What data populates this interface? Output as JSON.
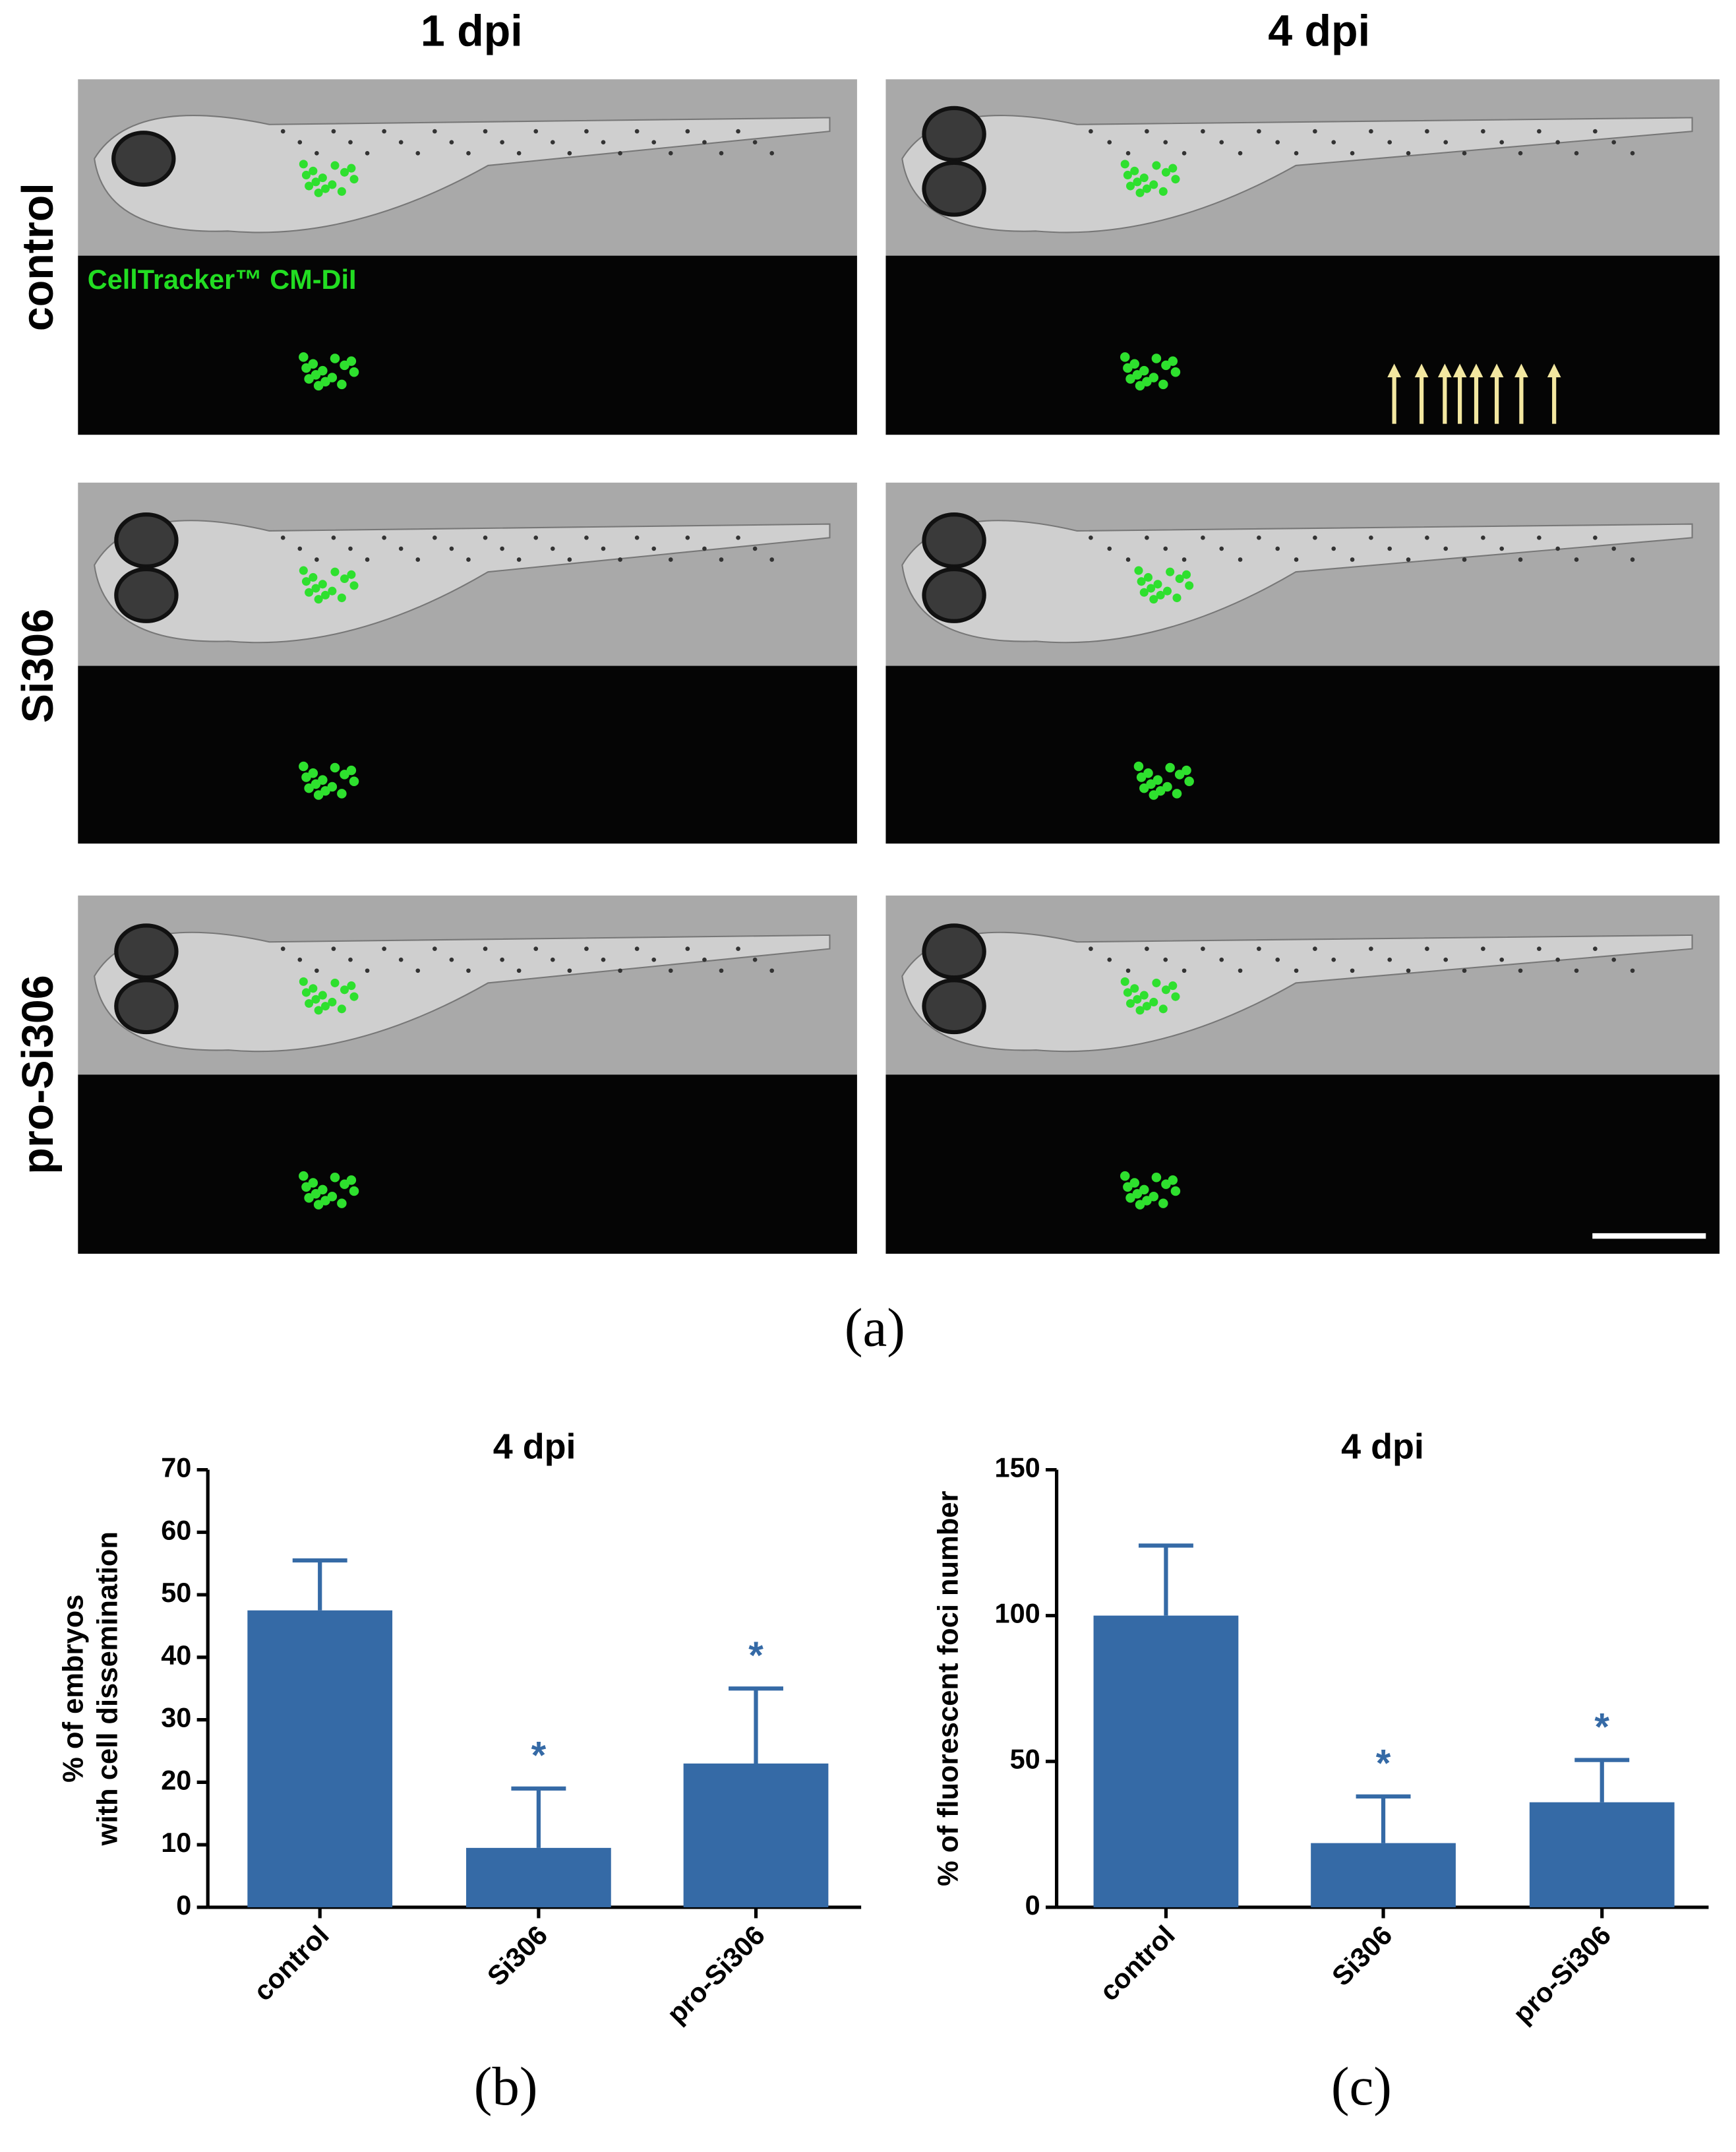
{
  "figure": {
    "columns": [
      "1 dpi",
      "4 dpi"
    ],
    "rows": [
      "control",
      "Si306",
      "pro-Si306"
    ],
    "stain_label": "CellTracker™ CM-DiI",
    "panel_labels": [
      "(a)",
      "(b)",
      "(c)"
    ]
  },
  "chart_data": [
    {
      "type": "bar",
      "title": "4 dpi",
      "ylabel": [
        "% of embryos",
        "with cell dissemination"
      ],
      "categories": [
        "control",
        "Si306",
        "pro-Si306"
      ],
      "values": [
        47.5,
        9.5,
        23
      ],
      "errors": [
        8,
        9.5,
        12
      ],
      "color": "#356aa6",
      "ylim": [
        0,
        70
      ],
      "yticks": [
        0,
        10,
        20,
        30,
        40,
        50,
        60,
        70
      ],
      "annotations": [
        {
          "x": "Si306",
          "text": "*"
        },
        {
          "x": "pro-Si306",
          "text": "*"
        }
      ]
    },
    {
      "type": "bar",
      "title": "4 dpi",
      "ylabel": [
        "% of fluorescent foci number"
      ],
      "categories": [
        "control",
        "Si306",
        "pro-Si306"
      ],
      "values": [
        100,
        22,
        36
      ],
      "errors": [
        24,
        16,
        14.5
      ],
      "color": "#356aa6",
      "ylim": [
        0,
        150
      ],
      "yticks": [
        0,
        50,
        100,
        150
      ],
      "annotations": [
        {
          "x": "Si306",
          "text": "*"
        },
        {
          "x": "pro-Si306",
          "text": "*"
        }
      ]
    }
  ]
}
